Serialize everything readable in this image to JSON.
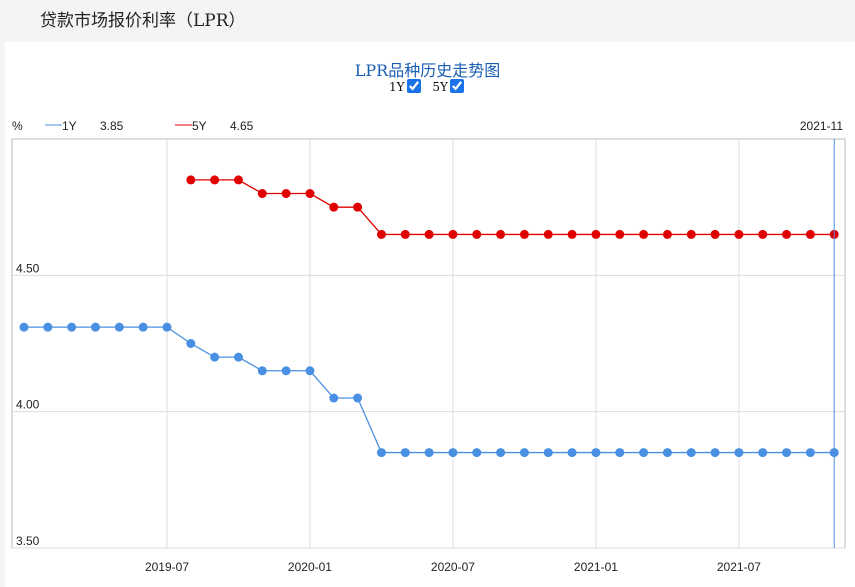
{
  "header": {
    "title": "贷款市场报价利率（LPR）"
  },
  "chart_toggles": [
    {
      "label": "1Y",
      "checked": true
    },
    {
      "label": "5Y",
      "checked": true
    }
  ],
  "legend": {
    "unit": "%",
    "items": [
      {
        "name": "1Y",
        "value": "3.85",
        "color": "#4a90e2"
      },
      {
        "name": "5Y",
        "value": "4.65",
        "color": "#e00000"
      }
    ],
    "cursor_label": "2021-11"
  },
  "chart_data": {
    "type": "line",
    "title": "LPR品种历史走势图",
    "ylabel": "%",
    "ylim": [
      3.5,
      5.0
    ],
    "yticks": [
      "3.50",
      "4.00",
      "4.50"
    ],
    "xticks": [
      "2019-07",
      "2020-01",
      "2020-07",
      "2021-01",
      "2021-07"
    ],
    "xrange": [
      "2019-01",
      "2021-11"
    ],
    "grid": true,
    "legend_placement": "top-left",
    "series": [
      {
        "name": "1Y",
        "color": "#4a90e2",
        "start": "2019-01",
        "values": [
          4.31,
          4.31,
          4.31,
          4.31,
          4.31,
          4.31,
          4.31,
          4.25,
          4.2,
          4.2,
          4.15,
          4.15,
          4.15,
          4.05,
          4.05,
          3.85,
          3.85,
          3.85,
          3.85,
          3.85,
          3.85,
          3.85,
          3.85,
          3.85,
          3.85,
          3.85,
          3.85,
          3.85,
          3.85,
          3.85,
          3.85,
          3.85,
          3.85,
          3.85,
          3.85
        ]
      },
      {
        "name": "5Y",
        "color": "#e00000",
        "start": "2019-08",
        "values": [
          4.85,
          4.85,
          4.85,
          4.8,
          4.8,
          4.8,
          4.75,
          4.75,
          4.65,
          4.65,
          4.65,
          4.65,
          4.65,
          4.65,
          4.65,
          4.65,
          4.65,
          4.65,
          4.65,
          4.65,
          4.65,
          4.65,
          4.65,
          4.65,
          4.65,
          4.65,
          4.65,
          4.65
        ]
      }
    ]
  }
}
